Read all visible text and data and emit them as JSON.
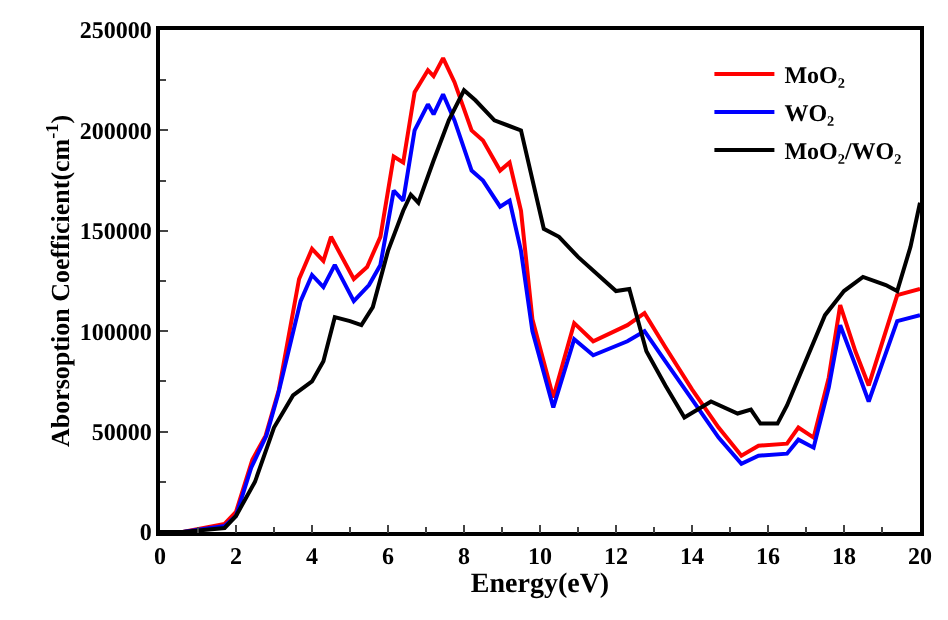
{
  "chart_data": {
    "type": "line",
    "xlabel": "Energy(eV)",
    "ylabel": "Aborsoption Coefficient(cm$^{-1}$)",
    "xlim": [
      0,
      20
    ],
    "xticks": [
      0,
      2,
      4,
      6,
      8,
      10,
      12,
      14,
      16,
      18,
      20
    ],
    "ylim": [
      0,
      250000
    ],
    "yticks": [
      0,
      50000,
      100000,
      150000,
      200000,
      250000
    ],
    "legend": "top right",
    "marker": "none",
    "line_style": "solid",
    "series": [
      {
        "name": "MoO₂",
        "color": "#ff0000",
        "x": [
          0,
          0.6,
          1.7,
          2.0,
          2.43,
          2.78,
          3.13,
          3.66,
          4.0,
          4.3,
          4.5,
          5.1,
          5.45,
          5.8,
          6.15,
          6.4,
          6.7,
          7.05,
          7.2,
          7.45,
          7.75,
          8.2,
          8.5,
          8.95,
          9.2,
          9.5,
          9.8,
          10.35,
          10.9,
          11.4,
          12.3,
          12.75,
          13.3,
          14.0,
          14.7,
          15.3,
          15.75,
          16.5,
          16.8,
          17.2,
          17.6,
          17.9,
          18.3,
          18.65,
          19.4,
          20
        ],
        "values": [
          0,
          0,
          4000,
          10000,
          36000,
          48000,
          71000,
          126000,
          141000,
          135000,
          147000,
          126000,
          132000,
          147000,
          187000,
          184000,
          219000,
          230000,
          227000,
          236000,
          224000,
          200000,
          195000,
          180000,
          184000,
          160000,
          106000,
          67000,
          104000,
          95000,
          103000,
          109000,
          92000,
          71000,
          52000,
          38000,
          43000,
          44000,
          52000,
          47000,
          77000,
          113000,
          90000,
          73000,
          118000,
          121000
        ]
      },
      {
        "name": "WO₂",
        "color": "#0000ff",
        "x": [
          0,
          0.6,
          1.7,
          2.0,
          2.4,
          2.8,
          3.1,
          3.7,
          4.0,
          4.3,
          4.6,
          5.1,
          5.5,
          5.8,
          6.15,
          6.4,
          6.7,
          7.05,
          7.2,
          7.45,
          7.75,
          8.2,
          8.5,
          8.95,
          9.2,
          9.5,
          9.8,
          10.35,
          10.9,
          11.4,
          12.3,
          12.75,
          13.3,
          14.0,
          14.7,
          15.3,
          15.75,
          16.5,
          16.8,
          17.2,
          17.6,
          17.9,
          18.3,
          18.65,
          19.4,
          20
        ],
        "values": [
          0,
          0,
          3000,
          8000,
          32000,
          48000,
          68000,
          115000,
          128000,
          122000,
          133000,
          115000,
          123000,
          133000,
          170000,
          165000,
          200000,
          213000,
          208000,
          218000,
          205000,
          180000,
          175000,
          162000,
          165000,
          140000,
          100000,
          62000,
          96000,
          88000,
          95000,
          100000,
          85000,
          66000,
          47000,
          34000,
          38000,
          39000,
          46000,
          42000,
          72000,
          103000,
          83000,
          65000,
          105000,
          108000
        ]
      },
      {
        "name": "MoO₂/WO₂",
        "color": "#000000",
        "x": [
          0,
          0.6,
          1.7,
          2.0,
          2.5,
          3.0,
          3.5,
          4.0,
          4.3,
          4.6,
          5.0,
          5.3,
          5.6,
          6.0,
          6.4,
          6.6,
          6.8,
          7.2,
          7.6,
          8.0,
          8.3,
          8.8,
          9.5,
          10.1,
          10.5,
          11.0,
          12.0,
          12.35,
          12.8,
          13.3,
          13.8,
          14.5,
          15.2,
          15.55,
          15.8,
          16.25,
          16.5,
          17.5,
          18.0,
          18.5,
          19.1,
          19.4,
          19.75,
          20
        ],
        "values": [
          0,
          0,
          2000,
          8000,
          25000,
          52000,
          68000,
          75000,
          85000,
          107000,
          105000,
          103000,
          112000,
          140000,
          160000,
          168000,
          164000,
          185000,
          205000,
          220000,
          215000,
          205000,
          200000,
          151000,
          147000,
          137000,
          120000,
          121000,
          90000,
          73000,
          57000,
          65000,
          59000,
          61000,
          54000,
          54000,
          63000,
          108000,
          120000,
          127000,
          123000,
          120000,
          142000,
          164000
        ]
      }
    ]
  }
}
